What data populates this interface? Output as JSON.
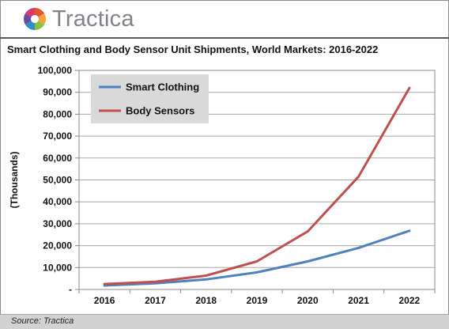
{
  "brand": {
    "name": "Tractica"
  },
  "chart_data": {
    "type": "line",
    "title": "Smart Clothing and Body Sensor Unit Shipments, World Markets: 2016-2022",
    "xlabel": "",
    "ylabel": "(Thousands)",
    "categories": [
      "2016",
      "2017",
      "2018",
      "2019",
      "2020",
      "2021",
      "2022"
    ],
    "ylim": [
      0,
      100000
    ],
    "ytick_labels": [
      "-",
      "10,000",
      "20,000",
      "30,000",
      "40,000",
      "50,000",
      "60,000",
      "70,000",
      "80,000",
      "90,000",
      "100,000"
    ],
    "grid": true,
    "legend_position": "top-left",
    "series": [
      {
        "name": "Smart Clothing",
        "color": "#4f81bd",
        "values": [
          1800,
          2800,
          4600,
          7800,
          12800,
          19000,
          26800
        ]
      },
      {
        "name": "Body Sensors",
        "color": "#c0504d",
        "values": [
          2500,
          3500,
          6300,
          12800,
          26500,
          51500,
          92000
        ]
      }
    ]
  },
  "footer": {
    "source": "Source: Tractica"
  }
}
